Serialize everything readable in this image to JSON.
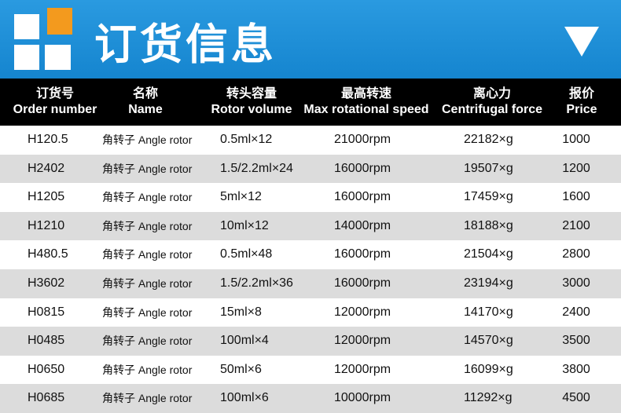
{
  "header": {
    "title": "订货信息"
  },
  "table": {
    "columns": [
      {
        "zh": "订货号",
        "en": "Order number"
      },
      {
        "zh": "名称",
        "en": "Name"
      },
      {
        "zh": "转头容量",
        "en": "Rotor volume"
      },
      {
        "zh": "最高转速",
        "en": "Max rotational speed"
      },
      {
        "zh": "离心力",
        "en": "Centrifugal force"
      },
      {
        "zh": "报价",
        "en": "Price"
      }
    ],
    "rows": [
      [
        "H120.5",
        "角转子 Angle rotor",
        "0.5ml×12",
        "21000rpm",
        "22182×g",
        "1000"
      ],
      [
        "H2402",
        "角转子 Angle rotor",
        "1.5/2.2ml×24",
        "16000rpm",
        "19507×g",
        "1200"
      ],
      [
        "H1205",
        "角转子 Angle rotor",
        "5ml×12",
        "16000rpm",
        "17459×g",
        "1600"
      ],
      [
        "H1210",
        "角转子 Angle rotor",
        "10ml×12",
        "14000rpm",
        "18188×g",
        "2100"
      ],
      [
        "H480.5",
        "角转子 Angle rotor",
        "0.5ml×48",
        "16000rpm",
        "21504×g",
        "2800"
      ],
      [
        "H3602",
        "角转子 Angle rotor",
        "1.5/2.2ml×36",
        "16000rpm",
        "23194×g",
        "3000"
      ],
      [
        "H0815",
        "角转子 Angle rotor",
        "15ml×8",
        "12000rpm",
        "14170×g",
        "2400"
      ],
      [
        "H0485",
        "角转子 Angle rotor",
        "100ml×4",
        "12000rpm",
        "14570×g",
        "3500"
      ],
      [
        "H0650",
        "角转子 Angle rotor",
        "50ml×6",
        "12000rpm",
        "16099×g",
        "3800"
      ],
      [
        "H0685",
        "角转子 Angle rotor",
        "100ml×6",
        "10000rpm",
        "11292×g",
        "4500"
      ]
    ]
  }
}
